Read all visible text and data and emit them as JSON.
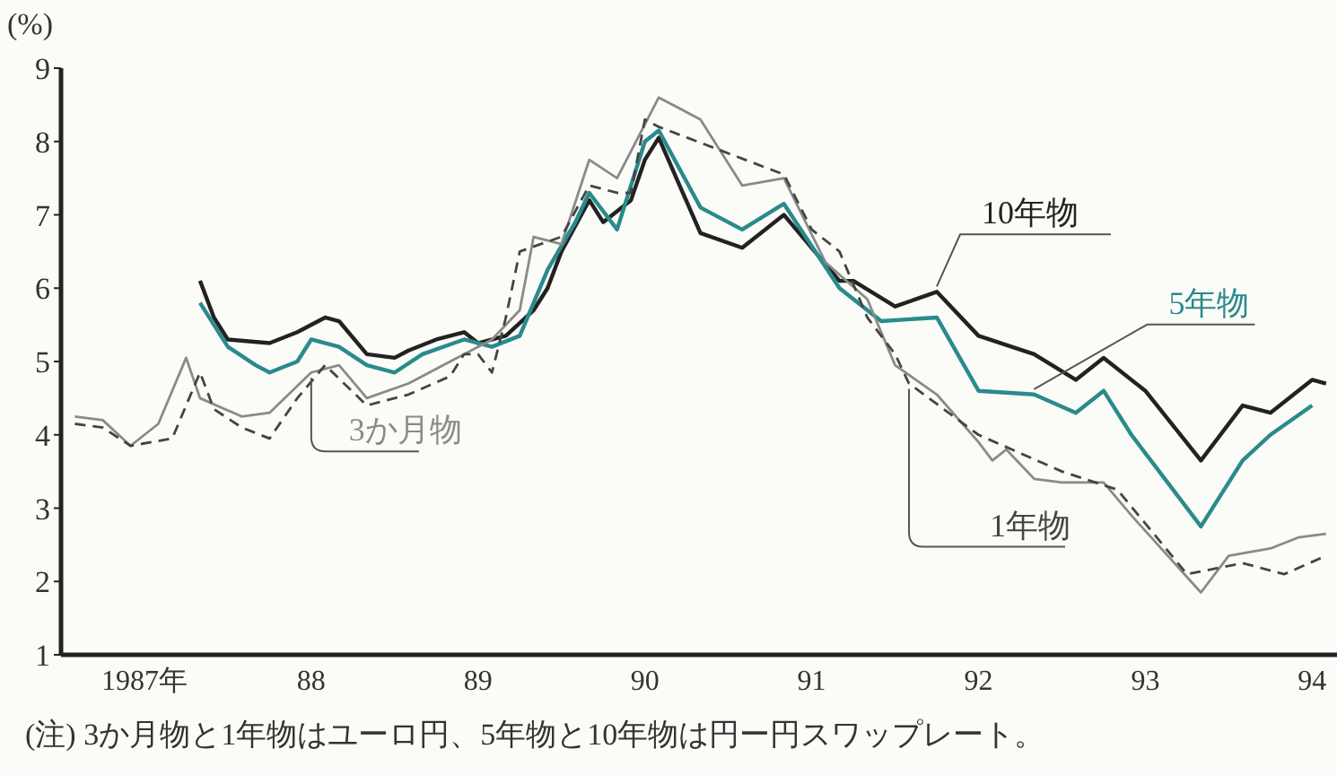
{
  "chart_data": {
    "type": "line",
    "ylabel": "(%)",
    "annotations": [
      "(注) 3か月物と1年物はユーロ円、5年物と10年物は円ー円スワップレート。"
    ],
    "xlim": [
      "1987-01-01",
      "1994-08-25"
    ],
    "ylim": [
      1,
      9
    ],
    "yticks": [
      1,
      2,
      3,
      4,
      5,
      6,
      7,
      8,
      9
    ],
    "xticks": [
      {
        "value": "1987-07",
        "label": "1987年"
      },
      {
        "value": "1988-07",
        "label": "88"
      },
      {
        "value": "1989-07",
        "label": "89"
      },
      {
        "value": "1990-07",
        "label": "90"
      },
      {
        "value": "1991-07",
        "label": "91"
      },
      {
        "value": "1992-07",
        "label": "92"
      },
      {
        "value": "1993-07",
        "label": "93"
      },
      {
        "value": "1994-07",
        "label": "94"
      }
    ],
    "grid": false,
    "legend": false,
    "marker": "none",
    "series": [
      {
        "name": "10年物",
        "color": "#222222",
        "line_style": "solid",
        "x": [
          "1987-11",
          "1987-12",
          "1988-01",
          "1988-04",
          "1988-06",
          "1988-08",
          "1988-09",
          "1988-11",
          "1989-01",
          "1989-02",
          "1989-04",
          "1989-06",
          "1989-07",
          "1989-09",
          "1989-11",
          "1989-12",
          "1990-01",
          "1990-03",
          "1990-04",
          "1990-06",
          "1990-07",
          "1990-08",
          "1990-11",
          "1991-02",
          "1991-05",
          "1991-09",
          "1991-10",
          "1992-01",
          "1992-04",
          "1992-07",
          "1992-11",
          "1993-02",
          "1993-04",
          "1993-07",
          "1993-11",
          "1994-02",
          "1994-04",
          "1994-07",
          "1994-08"
        ],
        "values": [
          6.1,
          5.6,
          5.3,
          5.25,
          5.4,
          5.6,
          5.55,
          5.1,
          5.05,
          5.15,
          5.3,
          5.4,
          5.25,
          5.35,
          5.7,
          6.0,
          6.5,
          7.2,
          6.9,
          7.2,
          7.75,
          8.05,
          6.75,
          6.55,
          7.0,
          6.1,
          6.1,
          5.75,
          5.95,
          5.35,
          5.1,
          4.75,
          5.05,
          4.6,
          3.65,
          4.4,
          4.3,
          4.75,
          4.7
        ]
      },
      {
        "name": "5年物",
        "color": "#2a8a8c",
        "line_style": "solid",
        "x": [
          "1987-11",
          "1988-01",
          "1988-03",
          "1988-04",
          "1988-06",
          "1988-07",
          "1988-09",
          "1988-11",
          "1989-01",
          "1989-03",
          "1989-06",
          "1989-08",
          "1989-10",
          "1989-12",
          "1990-02",
          "1990-03",
          "1990-05",
          "1990-07",
          "1990-08",
          "1990-11",
          "1991-02",
          "1991-05",
          "1991-09",
          "1991-12",
          "1992-04",
          "1992-07",
          "1992-11",
          "1993-02",
          "1993-04",
          "1993-06",
          "1993-11",
          "1994-02",
          "1994-04",
          "1994-07"
        ],
        "values": [
          5.8,
          5.2,
          4.95,
          4.85,
          5.0,
          5.3,
          5.2,
          4.95,
          4.85,
          5.1,
          5.3,
          5.2,
          5.35,
          6.25,
          6.9,
          7.3,
          6.8,
          8.0,
          8.15,
          7.1,
          6.8,
          7.15,
          6.0,
          5.55,
          5.6,
          4.6,
          4.55,
          4.3,
          4.6,
          4.0,
          2.75,
          3.65,
          4.0,
          4.4
        ]
      },
      {
        "name": "3か月物",
        "color": "#8a8a8a",
        "line_style": "solid",
        "x": [
          "1987-02",
          "1987-04",
          "1987-06",
          "1987-08",
          "1987-10",
          "1987-11",
          "1988-02",
          "1988-04",
          "1988-07",
          "1988-09",
          "1988-11",
          "1989-02",
          "1989-05",
          "1989-08",
          "1989-10",
          "1989-11",
          "1990-01",
          "1990-03",
          "1990-05",
          "1990-08",
          "1990-11",
          "1991-02",
          "1991-05",
          "1991-08",
          "1991-11",
          "1992-01",
          "1992-04",
          "1992-07",
          "1992-08",
          "1992-09",
          "1992-11",
          "1993-01",
          "1993-04",
          "1993-06",
          "1993-11",
          "1994-01",
          "1994-04",
          "1994-06",
          "1994-08"
        ],
        "values": [
          4.25,
          4.2,
          3.85,
          4.15,
          5.05,
          4.5,
          4.25,
          4.3,
          4.85,
          4.95,
          4.5,
          4.7,
          5.0,
          5.3,
          5.7,
          6.7,
          6.6,
          7.75,
          7.5,
          8.6,
          8.3,
          7.4,
          7.5,
          6.35,
          5.85,
          4.95,
          4.55,
          3.9,
          3.65,
          3.8,
          3.4,
          3.35,
          3.35,
          2.9,
          1.85,
          2.35,
          2.45,
          2.6,
          2.65
        ]
      },
      {
        "name": "1年物",
        "color": "#444444",
        "line_style": "dashed",
        "x": [
          "1987-02",
          "1987-04",
          "1987-06",
          "1987-09",
          "1987-11",
          "1987-12",
          "1988-02",
          "1988-04",
          "1988-06",
          "1988-08",
          "1988-11",
          "1989-02",
          "1989-05",
          "1989-06",
          "1989-07",
          "1989-08",
          "1989-09",
          "1989-10",
          "1990-01",
          "1990-03",
          "1990-05",
          "1990-06",
          "1990-07",
          "1990-08",
          "1991-05",
          "1991-07",
          "1991-09",
          "1991-11",
          "1992-01",
          "1992-02",
          "1992-07",
          "1993-01",
          "1993-05",
          "1993-10",
          "1994-02",
          "1994-05",
          "1994-08"
        ],
        "values": [
          4.15,
          4.1,
          3.85,
          3.95,
          4.85,
          4.35,
          4.1,
          3.95,
          4.5,
          4.95,
          4.4,
          4.55,
          4.8,
          5.1,
          5.1,
          4.85,
          5.6,
          6.5,
          6.7,
          7.4,
          7.3,
          7.3,
          8.3,
          8.2,
          7.55,
          6.8,
          6.5,
          5.6,
          5.1,
          4.7,
          4.0,
          3.5,
          3.25,
          2.1,
          2.25,
          2.1,
          2.35
        ]
      }
    ]
  }
}
